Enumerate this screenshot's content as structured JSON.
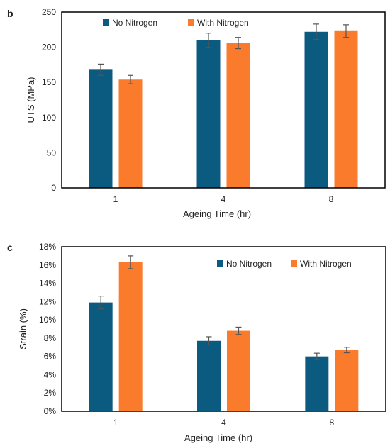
{
  "colors": {
    "no_nitrogen": "#0b5a80",
    "with_nitrogen": "#f97b2b",
    "error_bar": "#555555",
    "frame": "#000000"
  },
  "chart_data": [
    {
      "panel": "b",
      "type": "bar",
      "categories": [
        "1",
        "4",
        "8"
      ],
      "xlabel": "Ageing Time (hr)",
      "ylabel": "UTS (MPa)",
      "ylim": [
        0,
        250
      ],
      "yticks": [
        0,
        50,
        100,
        150,
        200,
        250
      ],
      "ytick_labels": [
        "0",
        "50",
        "100",
        "150",
        "200",
        "250"
      ],
      "legend_position": "top-center",
      "grid": false,
      "series": [
        {
          "name": "No Nitrogen",
          "values": [
            168,
            210,
            222
          ],
          "errors": [
            8,
            10,
            11
          ]
        },
        {
          "name": "With Nitrogen",
          "values": [
            154,
            206,
            223
          ],
          "errors": [
            6,
            8,
            9
          ]
        }
      ]
    },
    {
      "panel": "c",
      "type": "bar",
      "categories": [
        "1",
        "4",
        "8"
      ],
      "xlabel": "Ageing Time (hr)",
      "ylabel": "Strain (%)",
      "ylim": [
        0,
        18
      ],
      "yticks": [
        0,
        2,
        4,
        6,
        8,
        10,
        12,
        14,
        16,
        18
      ],
      "ytick_labels": [
        "0%",
        "2%",
        "4%",
        "6%",
        "8%",
        "10%",
        "12%",
        "14%",
        "16%",
        "18%"
      ],
      "legend_position": "top-right",
      "grid": false,
      "series": [
        {
          "name": "No Nitrogen",
          "values": [
            11.9,
            7.7,
            6.0
          ],
          "errors": [
            0.7,
            0.45,
            0.35
          ]
        },
        {
          "name": "With Nitrogen",
          "values": [
            16.3,
            8.8,
            6.7
          ],
          "errors": [
            0.7,
            0.4,
            0.3
          ]
        }
      ]
    }
  ]
}
